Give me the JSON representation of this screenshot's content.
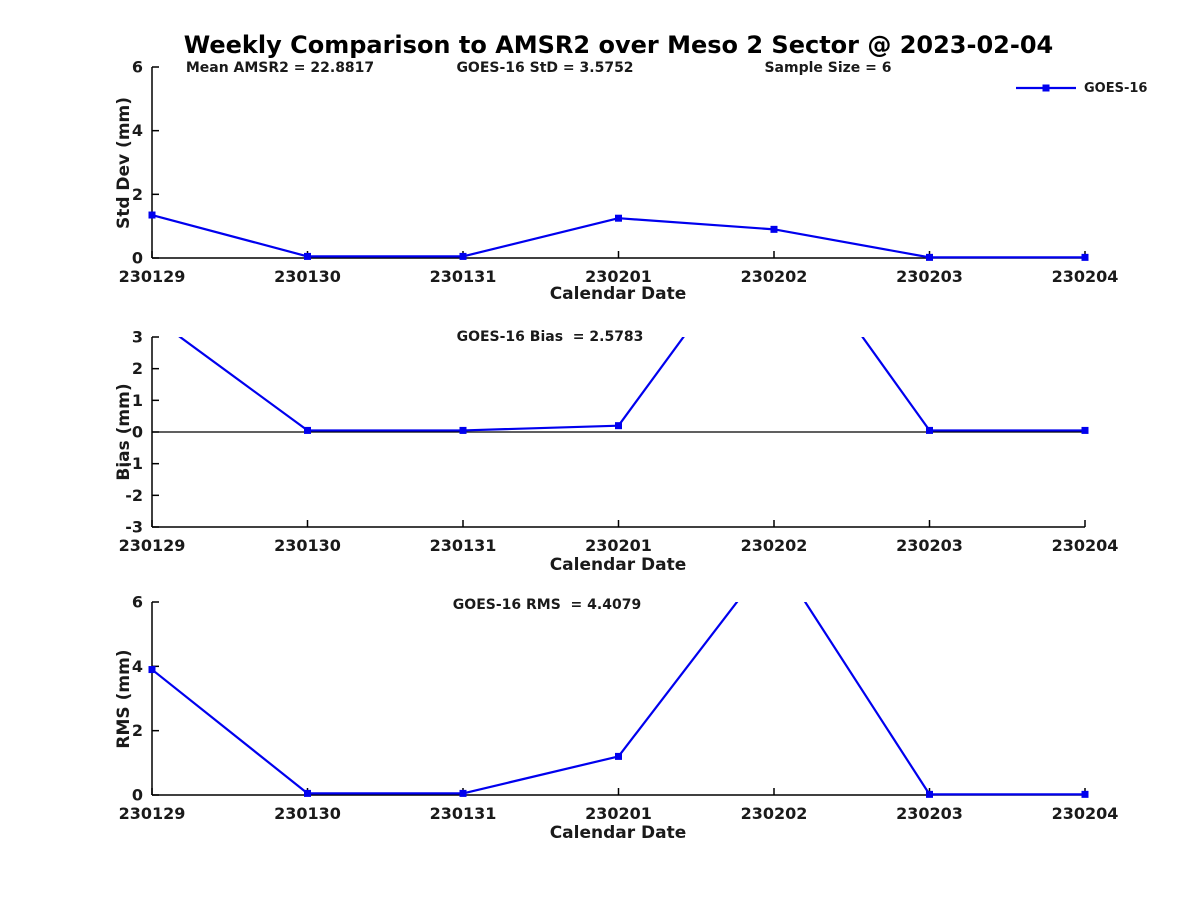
{
  "title": "Weekly Comparison to AMSR2 over Meso 2 Sector @ 2023-02-04",
  "colors": {
    "line": "#0000ee",
    "axis": "#000000",
    "text": "#1a1a1a",
    "background": "#ffffff"
  },
  "legend": {
    "label": "GOES-16"
  },
  "stats": {
    "mean_amsr2": 22.8817,
    "goes16_std": 3.5752,
    "sample_size": 6,
    "goes16_bias": 2.5783,
    "goes16_rms": 4.4079
  },
  "chart_data": [
    {
      "type": "line",
      "name": "std-dev",
      "ylabel": "Std Dev (mm)",
      "xlabel": "Calendar Date",
      "ylim": [
        0,
        6
      ],
      "yticks": [
        0,
        2,
        4,
        6
      ],
      "grid": false,
      "legend_position": "upper-right-outside",
      "categories": [
        "230129",
        "230130",
        "230131",
        "230201",
        "230202",
        "230203",
        "230204"
      ],
      "series": [
        {
          "name": "GOES-16",
          "marker": "square",
          "values": [
            1.35,
            0.05,
            0.05,
            1.25,
            0.9,
            0.02,
            0.02
          ]
        }
      ],
      "annotations": [
        {
          "text": "Mean AMSR2 = 22.8817"
        },
        {
          "text": "GOES-16 StD = 3.5752"
        },
        {
          "text": "Sample Size = 6"
        }
      ]
    },
    {
      "type": "line",
      "name": "bias",
      "ylabel": "Bias (mm)",
      "xlabel": "Calendar Date",
      "ylim": [
        -3,
        3
      ],
      "yticks": [
        -3,
        -2,
        -1,
        0,
        1,
        2,
        3
      ],
      "zero_line": true,
      "grid": false,
      "categories": [
        "230129",
        "230130",
        "230131",
        "230201",
        "230202",
        "230203",
        "230204"
      ],
      "series": [
        {
          "name": "GOES-16",
          "marker": "square",
          "values": [
            3.65,
            0.05,
            0.05,
            0.2,
            6.9,
            0.05,
            0.05
          ],
          "note": "values above ylim are clipped at top of axes"
        }
      ],
      "annotations": [
        {
          "text": "GOES-16 Bias  = 2.5783"
        }
      ]
    },
    {
      "type": "line",
      "name": "rms",
      "ylabel": "RMS (mm)",
      "xlabel": "Calendar Date",
      "ylim": [
        0,
        6
      ],
      "yticks": [
        0,
        2,
        4,
        6
      ],
      "grid": false,
      "categories": [
        "230129",
        "230130",
        "230131",
        "230201",
        "230202",
        "230203",
        "230204"
      ],
      "series": [
        {
          "name": "GOES-16",
          "marker": "square",
          "values": [
            3.9,
            0.05,
            0.05,
            1.2,
            7.5,
            0.02,
            0.02
          ],
          "note": "values above ylim are clipped at top of axes"
        }
      ],
      "annotations": [
        {
          "text": "GOES-16 RMS  = 4.4079"
        }
      ]
    }
  ]
}
